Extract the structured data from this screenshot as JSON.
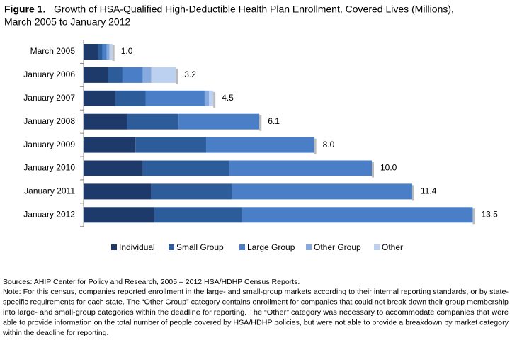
{
  "chart_data": {
    "type": "stacked_barh",
    "figure_label": "Figure 1.",
    "title": [
      "Growth of HSA-Qualified High-Deductible Health Plan Enrollment, Covered Lives (Millions),",
      "March 2005 to January 2012"
    ],
    "categories": [
      "March 2005",
      "January 2006",
      "January 2007",
      "January 2008",
      "January 2009",
      "January 2010",
      "January 2011",
      "January 2012"
    ],
    "series": [
      {
        "name": "Individual",
        "color": "#1d3a6a",
        "values": [
          0.5,
          0.85,
          1.1,
          1.5,
          1.8,
          2.05,
          2.35,
          2.45
        ]
      },
      {
        "name": "Small Group",
        "color": "#2d5c9a",
        "values": [
          0.15,
          0.5,
          1.05,
          1.8,
          2.45,
          3.0,
          2.8,
          3.05
        ]
      },
      {
        "name": "Large Group",
        "color": "#4a7ec6",
        "values": [
          0.15,
          0.7,
          2.05,
          2.8,
          3.75,
          4.95,
          6.25,
          8.0
        ]
      },
      {
        "name": "Other Group",
        "color": "#86aadf",
        "values": [
          0.1,
          0.3,
          0.15,
          0,
          0,
          0,
          0,
          0
        ]
      },
      {
        "name": "Other",
        "color": "#bcd0ef",
        "values": [
          0.1,
          0.85,
          0.15,
          0,
          0,
          0,
          0,
          0
        ]
      }
    ],
    "totals": {
      "values": [
        1.0,
        3.2,
        4.5,
        6.1,
        8.0,
        10.0,
        11.4,
        13.5
      ],
      "value_labels": [
        "1.0",
        "3.2",
        "4.5",
        "6.1",
        "8.0",
        "10.0",
        "11.4",
        "13.5"
      ]
    },
    "sources": "Sources:  AHIP Center for Policy and Research, 2005 – 2012 HSA/HDHP Census Reports.",
    "note": [
      "Note:  For this census, companies reported enrollment in the large- and small-group markets according to their internal reporting standards, or by state-",
      "specific requirements for each state.  The “Other Group” category contains enrollment for companies that could not break down their group membership",
      "into large- and small-group categories within the deadline for reporting.  The “Other” category was necessary to accommodate companies that were",
      "able to provide information on the total number of people covered by HSA/HDHP policies, but were not able to provide a breakdown by market category",
      "within the deadline for reporting."
    ]
  }
}
